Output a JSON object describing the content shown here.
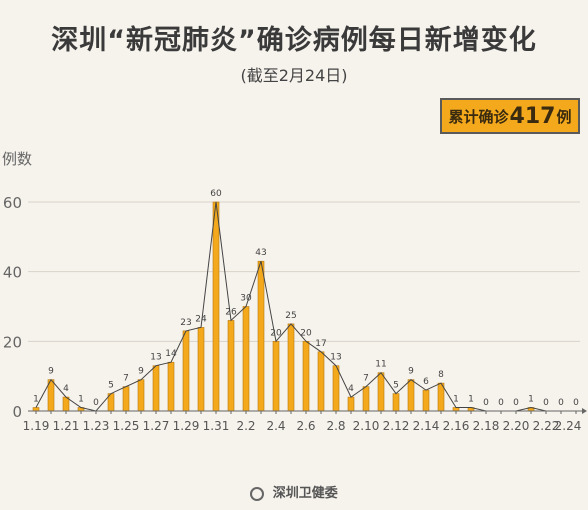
{
  "title": "深圳“新冠肺炎”确诊病例每日新增变化",
  "subtitle": "(截至2月24日)",
  "total": {
    "prefix": "累计确诊",
    "number": "417",
    "suffix": "例"
  },
  "footer": "深圳卫健委",
  "colors": {
    "bar": "#f3a91b",
    "bar_border": "#b87a10",
    "line": "#444444",
    "badge": "#f3a91b"
  },
  "chart_data": {
    "type": "bar",
    "ylabel": "例数",
    "ylim": [
      0,
      60
    ],
    "yticks": [
      0,
      20,
      40,
      60
    ],
    "categories": [
      "1.19",
      "1.20",
      "1.21",
      "1.22",
      "1.23",
      "1.24",
      "1.25",
      "1.26",
      "1.27",
      "1.28",
      "1.29",
      "1.30",
      "1.31",
      "2.1",
      "2.2",
      "2.3",
      "2.4",
      "2.5",
      "2.6",
      "2.7",
      "2.8",
      "2.9",
      "2.10",
      "2.11",
      "2.12",
      "2.13",
      "2.14",
      "2.15",
      "2.16",
      "2.17",
      "2.18",
      "2.19",
      "2.20",
      "2.21",
      "2.22",
      "2.23",
      "2.24"
    ],
    "xtick_labels": [
      "1.19",
      "1.21",
      "1.23",
      "1.25",
      "1.27",
      "1.29",
      "1.31",
      "2.2",
      "2.4",
      "2.6",
      "2.8",
      "2.10",
      "2.12",
      "2.14",
      "2.16",
      "2.18",
      "2.20",
      "2.22",
      "2.24"
    ],
    "values": [
      1,
      9,
      4,
      1,
      0,
      5,
      7,
      9,
      13,
      14,
      23,
      24,
      60,
      26,
      30,
      43,
      20,
      25,
      20,
      17,
      13,
      4,
      7,
      11,
      5,
      9,
      6,
      8,
      1,
      1,
      0,
      0,
      0,
      1,
      0,
      0,
      0
    ],
    "overlay_line": true,
    "grid": true
  }
}
